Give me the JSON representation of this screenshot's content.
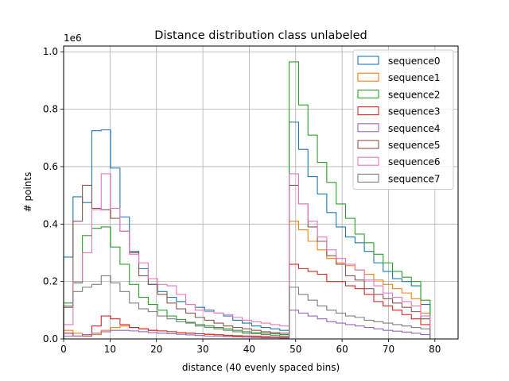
{
  "chart_data": {
    "type": "step-histogram",
    "title": "Distance distribution class unlabeled",
    "xlabel": "distance (40 evenly spaced bins)",
    "ylabel": "# points",
    "y_offset_text": "1e6",
    "xlim": [
      0,
      85
    ],
    "ylim": [
      0,
      1.02
    ],
    "xticks": [
      0,
      10,
      20,
      30,
      40,
      50,
      60,
      70,
      80
    ],
    "yticks": [
      0.0,
      0.2,
      0.4,
      0.6,
      0.8,
      1.0
    ],
    "xtick_labels": [
      "0",
      "10",
      "20",
      "30",
      "40",
      "50",
      "60",
      "70",
      "80"
    ],
    "ytick_labels": [
      "0.0",
      "0.2",
      "0.4",
      "0.6",
      "0.8",
      "1.0"
    ],
    "grid": true,
    "legend_position": "top-right",
    "bin_edges": [
      0,
      2.03,
      4.05,
      6.08,
      8.1,
      10.13,
      12.15,
      14.18,
      16.2,
      18.23,
      20.25,
      22.28,
      24.3,
      26.33,
      28.35,
      30.38,
      32.4,
      34.43,
      36.45,
      38.48,
      40.5,
      42.53,
      44.55,
      46.58,
      48.6,
      50.63,
      52.65,
      54.68,
      56.7,
      58.73,
      60.75,
      62.78,
      64.8,
      66.83,
      68.85,
      70.88,
      72.9,
      74.93,
      76.95,
      78.98,
      81.0
    ],
    "series": [
      {
        "name": "sequence0",
        "color": "#1f77b4",
        "values": [
          0.285,
          0.495,
          0.475,
          0.725,
          0.728,
          0.595,
          0.425,
          0.305,
          0.245,
          0.19,
          0.165,
          0.145,
          0.13,
          0.12,
          0.11,
          0.1,
          0.09,
          0.08,
          0.065,
          0.055,
          0.045,
          0.04,
          0.035,
          0.03,
          0.755,
          0.66,
          0.565,
          0.505,
          0.44,
          0.39,
          0.355,
          0.335,
          0.305,
          0.265,
          0.235,
          0.21,
          0.2,
          0.185,
          0.12,
          0.0
        ]
      },
      {
        "name": "sequence1",
        "color": "#ff7f0e",
        "values": [
          0.03,
          0.02,
          0.015,
          0.015,
          0.03,
          0.04,
          0.045,
          0.04,
          0.035,
          0.03,
          0.028,
          0.025,
          0.022,
          0.02,
          0.018,
          0.016,
          0.015,
          0.013,
          0.012,
          0.01,
          0.01,
          0.008,
          0.007,
          0.006,
          0.41,
          0.38,
          0.34,
          0.31,
          0.28,
          0.265,
          0.255,
          0.24,
          0.225,
          0.205,
          0.19,
          0.175,
          0.16,
          0.14,
          0.09,
          0.0
        ]
      },
      {
        "name": "sequence2",
        "color": "#2ca02c",
        "values": [
          0.125,
          0.195,
          0.36,
          0.385,
          0.39,
          0.32,
          0.26,
          0.19,
          0.145,
          0.12,
          0.1,
          0.08,
          0.068,
          0.058,
          0.05,
          0.045,
          0.04,
          0.035,
          0.03,
          0.025,
          0.022,
          0.02,
          0.018,
          0.015,
          0.965,
          0.815,
          0.71,
          0.615,
          0.545,
          0.47,
          0.42,
          0.365,
          0.335,
          0.295,
          0.265,
          0.235,
          0.215,
          0.2,
          0.135,
          0.0
        ]
      },
      {
        "name": "sequence3",
        "color": "#d62728",
        "values": [
          0.02,
          0.01,
          0.01,
          0.045,
          0.08,
          0.07,
          0.05,
          0.04,
          0.035,
          0.03,
          0.028,
          0.025,
          0.022,
          0.02,
          0.018,
          0.016,
          0.014,
          0.012,
          0.01,
          0.01,
          0.008,
          0.007,
          0.006,
          0.005,
          0.26,
          0.245,
          0.235,
          0.225,
          0.2,
          0.2,
          0.185,
          0.175,
          0.155,
          0.13,
          0.115,
          0.1,
          0.085,
          0.07,
          0.05,
          0.0
        ]
      },
      {
        "name": "sequence4",
        "color": "#9467bd",
        "values": [
          0.01,
          0.01,
          0.015,
          0.02,
          0.025,
          0.03,
          0.03,
          0.028,
          0.025,
          0.022,
          0.02,
          0.018,
          0.016,
          0.014,
          0.012,
          0.01,
          0.009,
          0.008,
          0.007,
          0.006,
          0.005,
          0.004,
          0.004,
          0.003,
          0.1,
          0.09,
          0.08,
          0.07,
          0.06,
          0.055,
          0.05,
          0.045,
          0.04,
          0.035,
          0.03,
          0.027,
          0.024,
          0.02,
          0.015,
          0.0
        ]
      },
      {
        "name": "sequence5",
        "color": "#8c564b",
        "values": [
          0.11,
          0.41,
          0.535,
          0.455,
          0.45,
          0.42,
          0.375,
          0.3,
          0.22,
          0.19,
          0.155,
          0.125,
          0.105,
          0.09,
          0.075,
          0.065,
          0.055,
          0.045,
          0.04,
          0.035,
          0.03,
          0.025,
          0.022,
          0.02,
          0.535,
          0.47,
          0.39,
          0.34,
          0.29,
          0.26,
          0.22,
          0.205,
          0.175,
          0.155,
          0.14,
          0.125,
          0.11,
          0.095,
          0.07,
          0.0
        ]
      },
      {
        "name": "sequence6",
        "color": "#e377c2",
        "values": [
          0.05,
          0.2,
          0.3,
          0.45,
          0.575,
          0.455,
          0.375,
          0.295,
          0.265,
          0.21,
          0.19,
          0.185,
          0.155,
          0.12,
          0.1,
          0.095,
          0.09,
          0.085,
          0.075,
          0.065,
          0.06,
          0.055,
          0.05,
          0.045,
          0.575,
          0.47,
          0.41,
          0.355,
          0.31,
          0.28,
          0.26,
          0.24,
          0.205,
          0.185,
          0.16,
          0.145,
          0.13,
          0.115,
          0.08,
          0.0
        ]
      },
      {
        "name": "sequence7",
        "color": "#7f7f7f",
        "values": [
          0.115,
          0.165,
          0.18,
          0.19,
          0.22,
          0.195,
          0.165,
          0.125,
          0.105,
          0.095,
          0.08,
          0.07,
          0.06,
          0.055,
          0.045,
          0.04,
          0.035,
          0.03,
          0.025,
          0.02,
          0.018,
          0.015,
          0.013,
          0.01,
          0.18,
          0.155,
          0.135,
          0.115,
          0.1,
          0.09,
          0.08,
          0.075,
          0.065,
          0.06,
          0.055,
          0.05,
          0.045,
          0.04,
          0.035,
          0.0
        ]
      }
    ]
  }
}
